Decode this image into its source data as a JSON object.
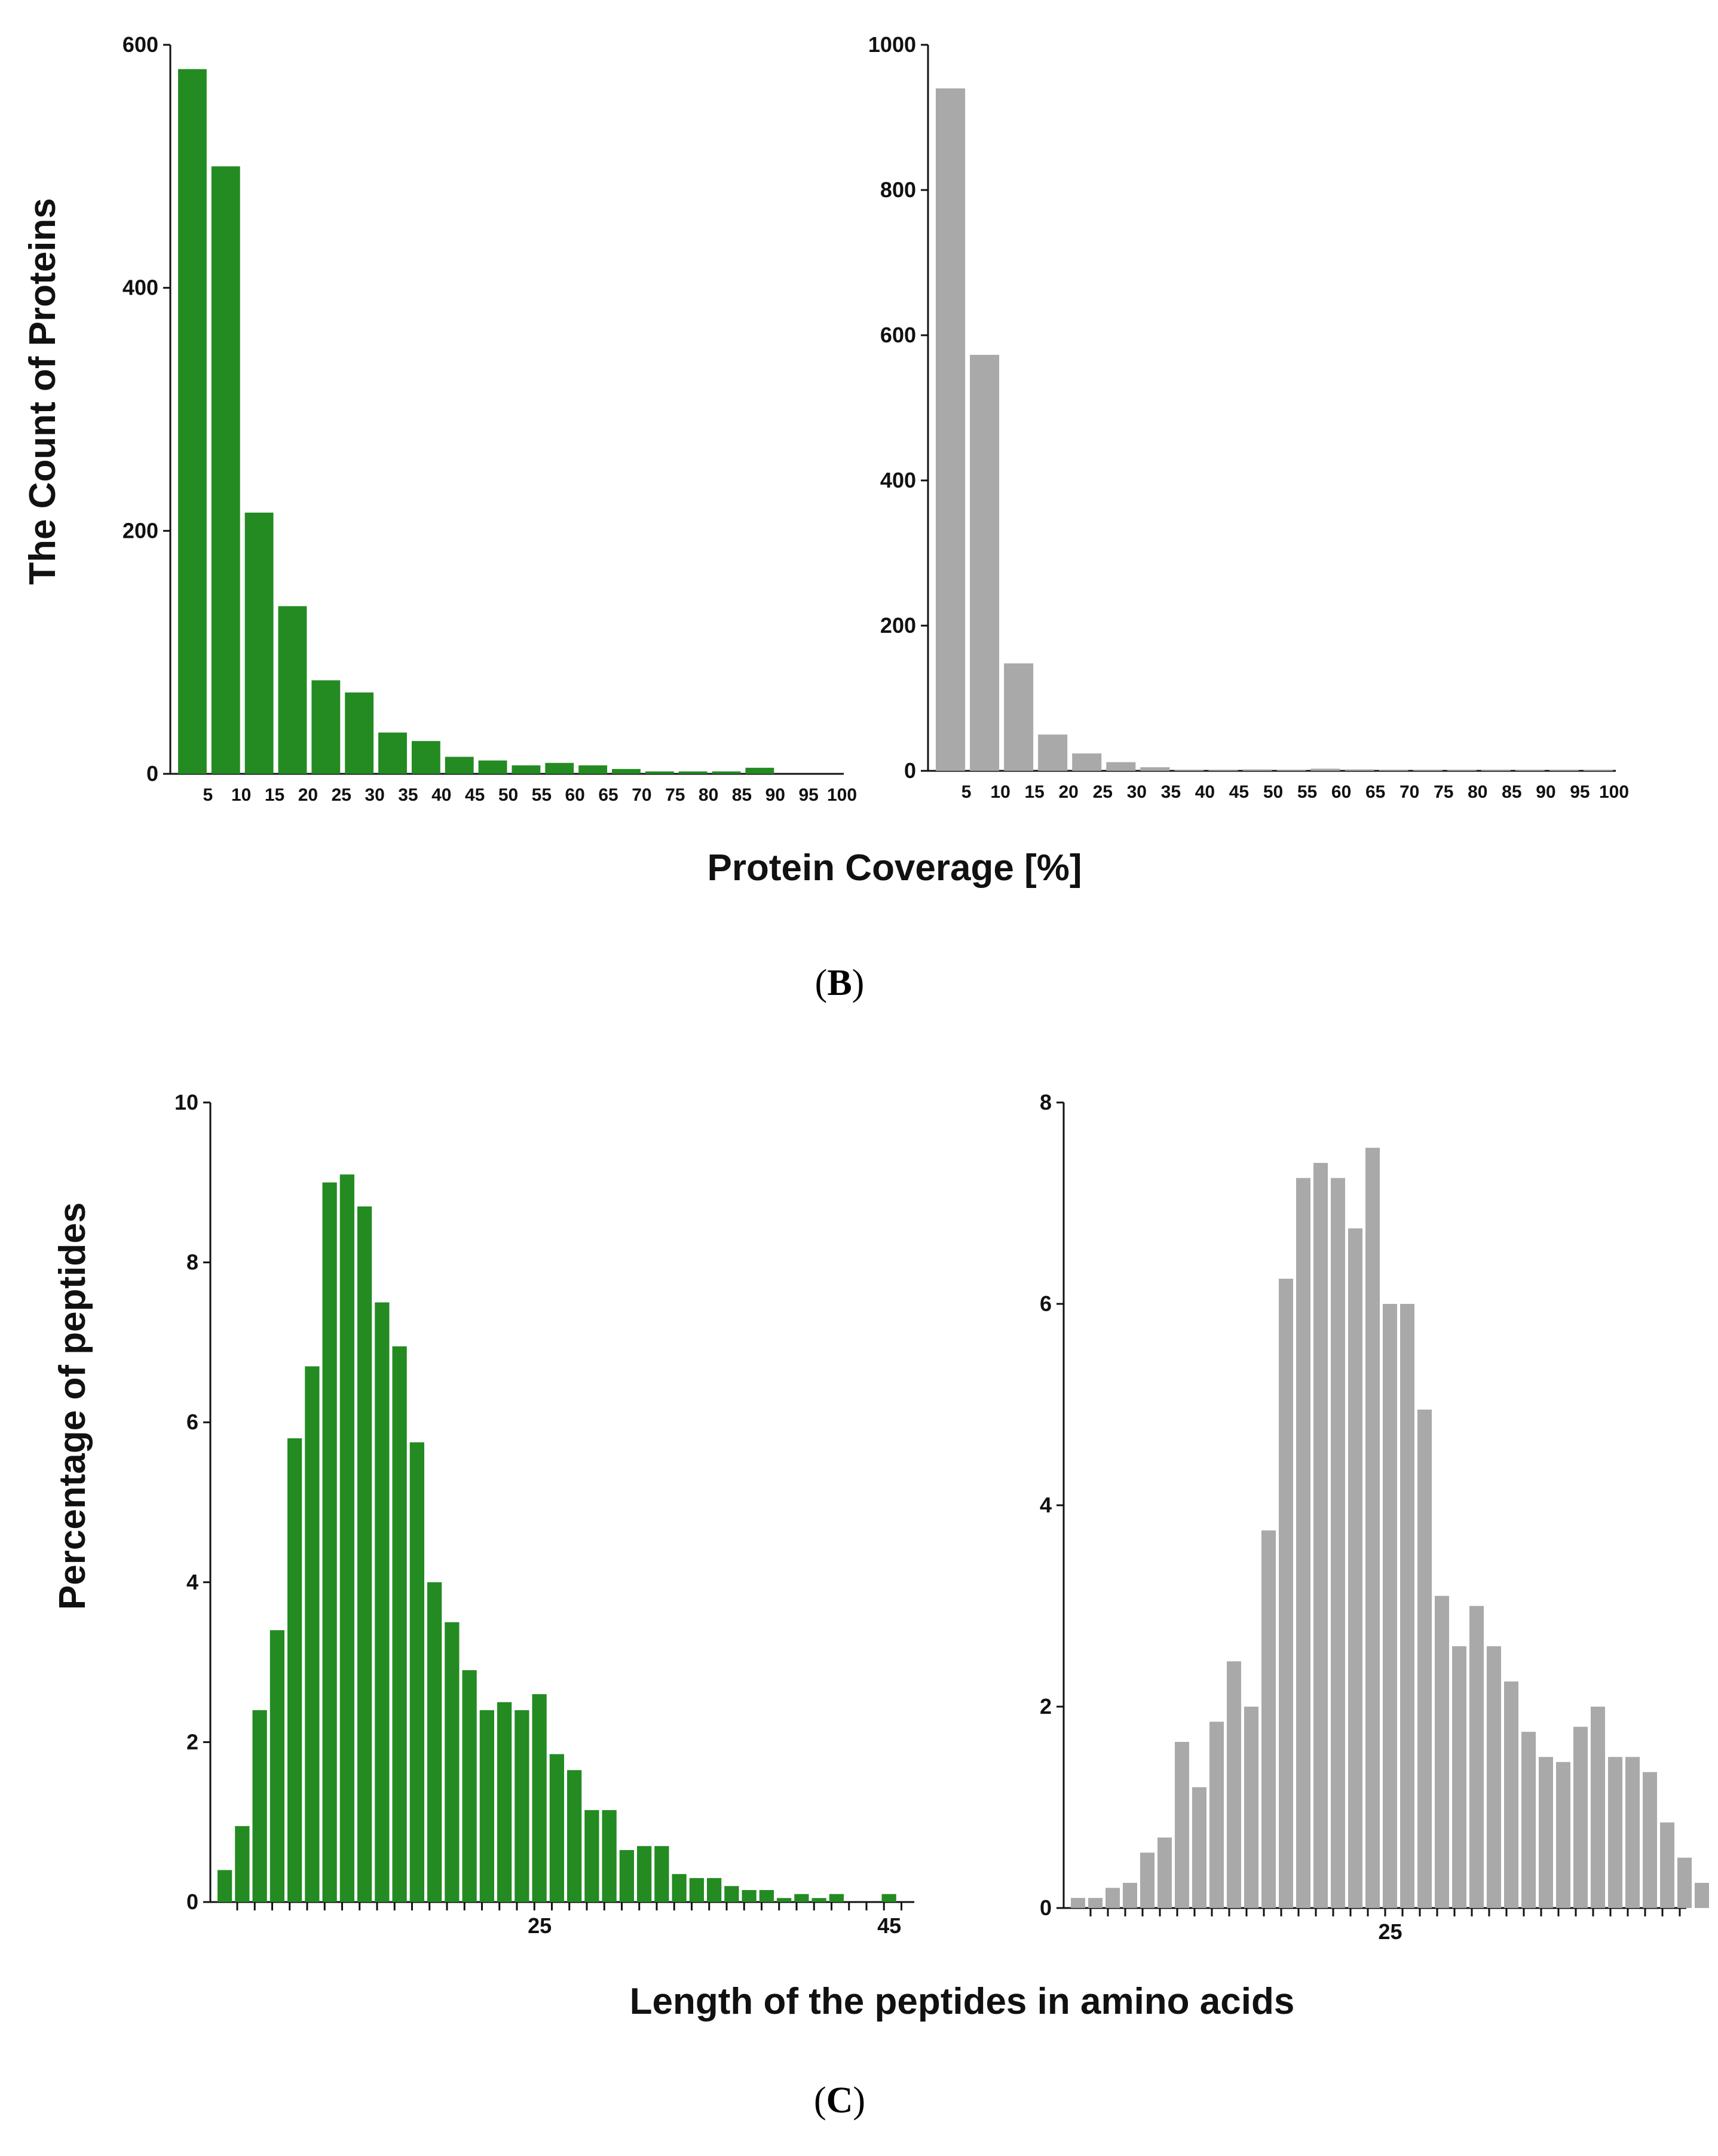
{
  "colors": {
    "green": "#238b22",
    "grey": "#a9a9a9",
    "axis": "#111111"
  },
  "panels": {
    "B": {
      "caption_open": "(",
      "caption_letter": "B",
      "caption_close": ")",
      "ylabel": "The Count of Proteins",
      "xlabel": "Protein Coverage [%]"
    },
    "C": {
      "caption_open": "(",
      "caption_letter": "C",
      "caption_close": ")",
      "ylabel": "Percentage of peptides",
      "xlabel": "Length of the peptides in amino acids"
    }
  },
  "chart_data": [
    {
      "id": "B-left",
      "type": "bar",
      "color": "green",
      "categories": [
        "5",
        "10",
        "15",
        "20",
        "25",
        "30",
        "35",
        "40",
        "45",
        "50",
        "55",
        "60",
        "65",
        "70",
        "75",
        "80",
        "85",
        "90",
        "95",
        "100"
      ],
      "values": [
        580,
        500,
        215,
        138,
        77,
        67,
        34,
        27,
        14,
        11,
        7,
        9,
        7,
        4,
        2,
        2,
        2,
        5,
        0,
        0
      ],
      "ylim": [
        0,
        600
      ],
      "yticks": [
        "0",
        "200",
        "400",
        "600"
      ],
      "ylabel": "The Count of Proteins",
      "xlabel": "Protein Coverage [%]"
    },
    {
      "id": "B-right",
      "type": "bar",
      "color": "grey",
      "categories": [
        "5",
        "10",
        "15",
        "20",
        "25",
        "30",
        "35",
        "40",
        "45",
        "50",
        "55",
        "60",
        "65",
        "70",
        "75",
        "80",
        "85",
        "90",
        "95",
        "100"
      ],
      "values": [
        940,
        573,
        148,
        50,
        24,
        12,
        5,
        1,
        1,
        2,
        1,
        3,
        2,
        1,
        1,
        1,
        1,
        1,
        1,
        1
      ],
      "ylim": [
        0,
        1000
      ],
      "yticks": [
        "0",
        "200",
        "400",
        "600",
        "800",
        "1000"
      ],
      "xlabel": "Protein Coverage [%]"
    },
    {
      "id": "C-left",
      "type": "bar",
      "color": "green",
      "x": [
        7,
        8,
        9,
        10,
        11,
        12,
        13,
        14,
        15,
        16,
        17,
        18,
        19,
        20,
        21,
        22,
        23,
        24,
        25,
        26,
        27,
        28,
        29,
        30,
        31,
        32,
        33,
        34,
        35,
        36,
        37,
        38,
        39,
        40,
        41,
        42,
        43,
        44,
        45
      ],
      "values": [
        0.4,
        0.95,
        2.4,
        3.4,
        5.8,
        6.7,
        9.0,
        9.1,
        8.7,
        7.5,
        6.95,
        5.75,
        4.0,
        3.5,
        2.9,
        2.4,
        2.5,
        2.4,
        2.6,
        1.85,
        1.65,
        1.15,
        1.15,
        0.65,
        0.7,
        0.7,
        0.35,
        0.3,
        0.3,
        0.2,
        0.15,
        0.15,
        0.05,
        0.1,
        0.05,
        0.1,
        0.0,
        0.0,
        0.1
      ],
      "ylim": [
        0,
        10
      ],
      "yticks": [
        "0",
        "2",
        "4",
        "6",
        "8",
        "10"
      ],
      "xticks_labeled": [
        "25",
        "45"
      ],
      "ylabel": "Percentage of peptides",
      "xlabel": "Length of the peptides in amino acids"
    },
    {
      "id": "C-right",
      "type": "bar",
      "color": "grey",
      "x": [
        7,
        8,
        9,
        10,
        11,
        12,
        13,
        14,
        15,
        16,
        17,
        18,
        19,
        20,
        21,
        22,
        23,
        24,
        25,
        26,
        27,
        28,
        29,
        30,
        31,
        32,
        33,
        34,
        35,
        36,
        37,
        38,
        39,
        40,
        41,
        42
      ],
      "values": [
        0.1,
        0.1,
        0.2,
        0.25,
        0.55,
        0.7,
        1.65,
        1.2,
        1.85,
        2.45,
        2.0,
        3.75,
        6.25,
        7.25,
        7.4,
        7.25,
        6.75,
        7.55,
        6.0,
        6.0,
        4.95,
        3.1,
        2.6,
        3.0,
        2.6,
        2.25,
        1.75,
        1.5,
        1.45,
        1.8,
        2.0,
        1.5,
        1.5,
        1.35,
        0.85,
        0.5
      ],
      "extra_bar": {
        "x": 43,
        "value": 0.25
      },
      "ylim": [
        0,
        8
      ],
      "yticks": [
        "0",
        "2",
        "4",
        "6",
        "8"
      ],
      "xticks_labeled": [
        "25"
      ],
      "xlabel": "Length of the peptides in amino acids"
    }
  ]
}
